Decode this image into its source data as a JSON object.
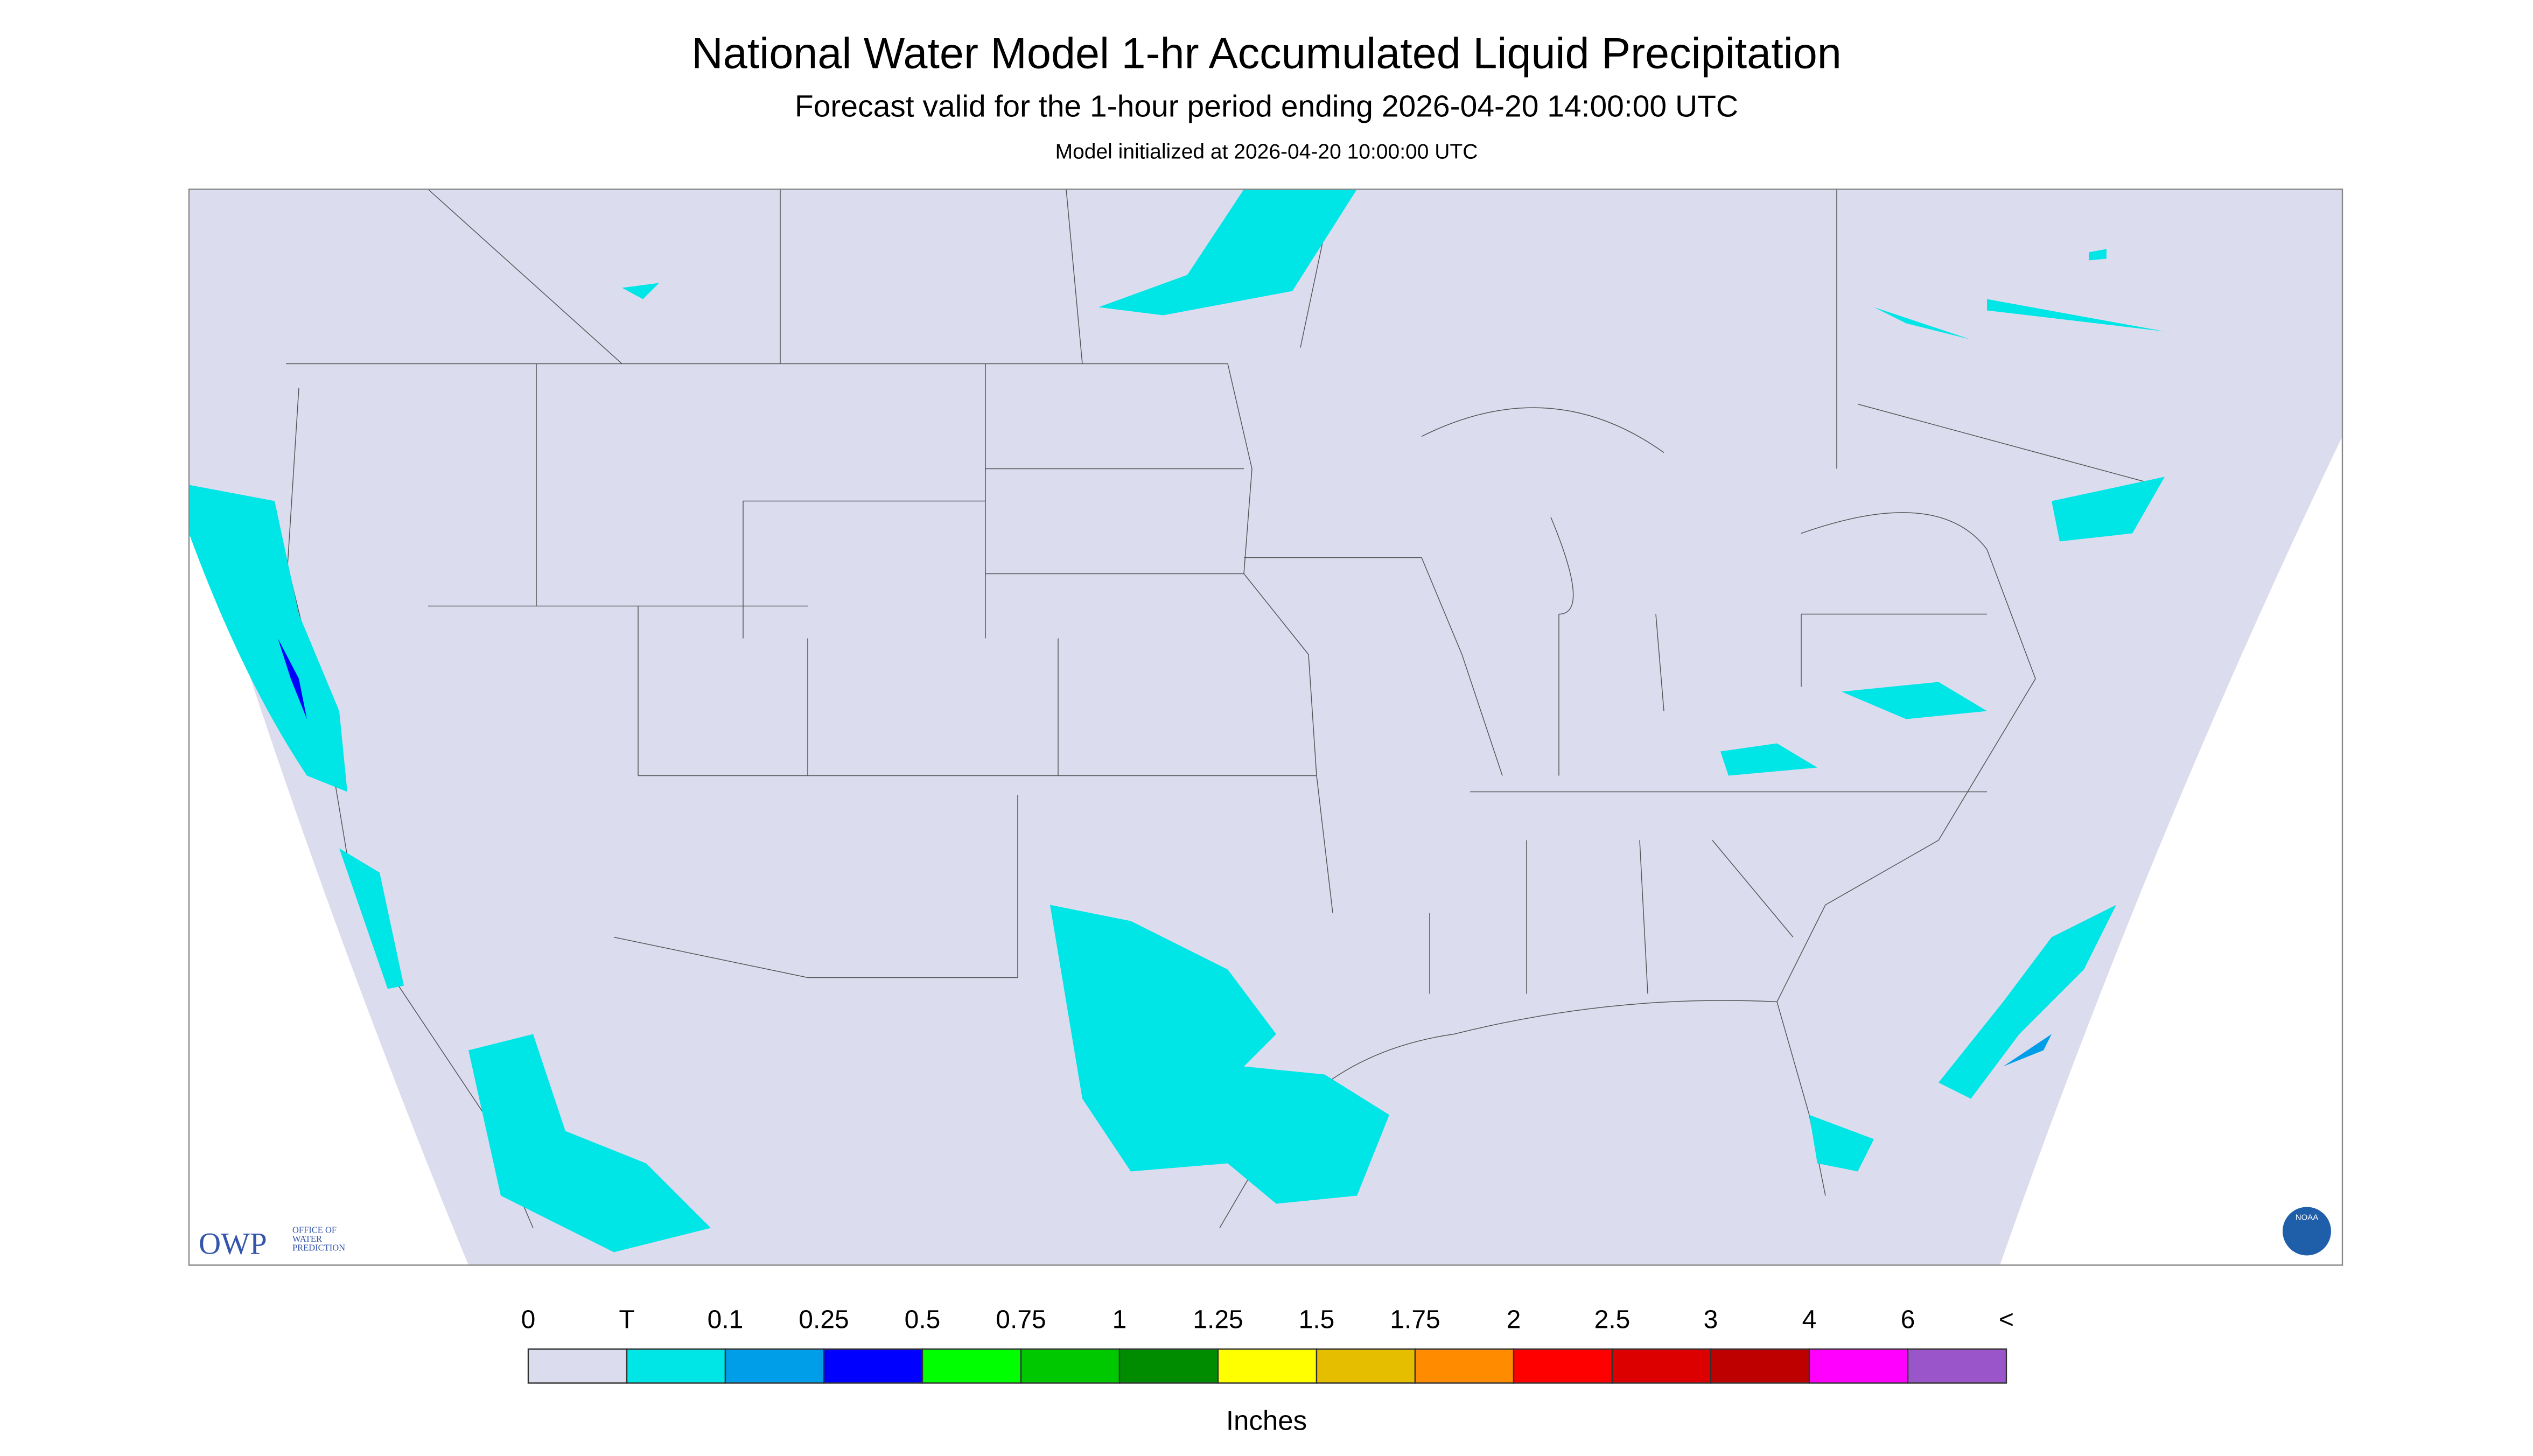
{
  "header": {
    "title": "National Water Model 1-hr Accumulated Liquid Precipitation",
    "subtitle": "Forecast valid for the 1-hour period ending 2026-04-20 14:00:00 UTC",
    "initialized": "Model initialized at 2026-04-20 10:00:00 UTC"
  },
  "legend": {
    "labels": [
      "0",
      "T",
      "0.1",
      "0.25",
      "0.5",
      "0.75",
      "1",
      "1.25",
      "1.5",
      "1.75",
      "2",
      "2.5",
      "3",
      "4",
      "6",
      "<"
    ],
    "colors": [
      "#dcdcef",
      "#00e5e5",
      "#009ee8",
      "#0000ff",
      "#00ff00",
      "#00c800",
      "#008c00",
      "#ffff00",
      "#e6be00",
      "#ff8c00",
      "#ff0000",
      "#dc0000",
      "#be0000",
      "#ff00ff",
      "#9955c9"
    ],
    "unit": "Inches"
  },
  "logos": {
    "owp": "OWP",
    "owp_lines": [
      "OFFICE OF",
      "WATER",
      "PREDICTION"
    ],
    "noaa": "NOAA"
  }
}
